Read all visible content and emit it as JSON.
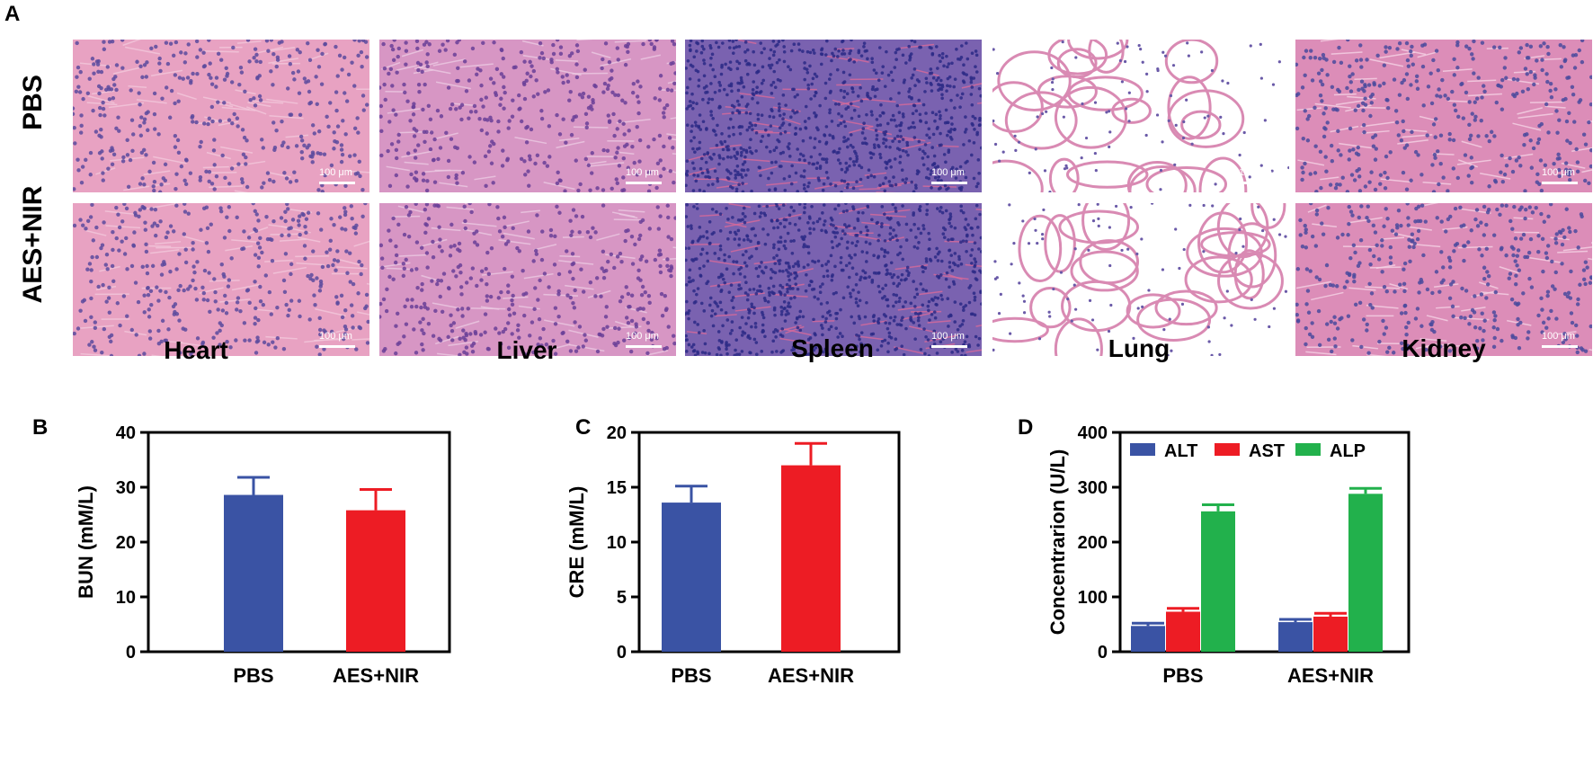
{
  "panel_a": {
    "letter": "A",
    "rows": [
      "PBS",
      "AES+NIR"
    ],
    "columns": [
      "Heart",
      "Liver",
      "Spleen",
      "Lung",
      "Kidney"
    ],
    "scale_label": "100 μm",
    "tissue_colors": {
      "Heart": {
        "bg": "#e8a2c2",
        "dot": "#5a4a9e",
        "line": "#f3c8dc"
      },
      "Liver": {
        "bg": "#d796c4",
        "dot": "#6a3f98",
        "line": "#eccae3"
      },
      "Spleen": {
        "bg": "#7a62b0",
        "dot": "#2c2a86",
        "line": "#d96a9a"
      },
      "Lung": {
        "bg": "#ffffff",
        "dot": "#6a5aa8",
        "line": "#d98ab3"
      },
      "Kidney": {
        "bg": "#dc8db8",
        "dot": "#4a4a9c",
        "line": "#f5d4e6"
      }
    }
  },
  "chart_data": [
    {
      "letter": "B",
      "type": "bar",
      "categories": [
        "PBS",
        "AES+NIR"
      ],
      "values": [
        28.6,
        25.8
      ],
      "errors": [
        3.2,
        3.8
      ],
      "colors": [
        "#3a53a4",
        "#ed1c24"
      ],
      "ylabel": "BUN (mM/L)",
      "ylim": [
        0,
        40
      ],
      "yticks": [
        "0",
        "10",
        "20",
        "30",
        "40"
      ]
    },
    {
      "letter": "C",
      "type": "bar",
      "categories": [
        "PBS",
        "AES+NIR"
      ],
      "values": [
        13.6,
        17.0
      ],
      "errors": [
        1.5,
        2.0
      ],
      "colors": [
        "#3a53a4",
        "#ed1c24"
      ],
      "ylabel": "CRE (mM/L)",
      "ylim": [
        0,
        20
      ],
      "yticks": [
        "0",
        "5",
        "10",
        "15",
        "20"
      ]
    },
    {
      "letter": "D",
      "type": "bar",
      "categories": [
        "PBS",
        "AES+NIR"
      ],
      "series": [
        {
          "name": "ALT",
          "color": "#3a53a4",
          "values": [
            47,
            54
          ],
          "errors": [
            5,
            5
          ]
        },
        {
          "name": "AST",
          "color": "#ed1c24",
          "values": [
            73,
            64
          ],
          "errors": [
            6,
            6
          ]
        },
        {
          "name": "ALP",
          "color": "#22b14c",
          "values": [
            256,
            288
          ],
          "errors": [
            12,
            10
          ]
        }
      ],
      "ylabel": "Concentrarion (U/L)",
      "ylim": [
        0,
        400
      ],
      "yticks": [
        "0",
        "100",
        "200",
        "300",
        "400"
      ],
      "legend_position": "top"
    }
  ]
}
